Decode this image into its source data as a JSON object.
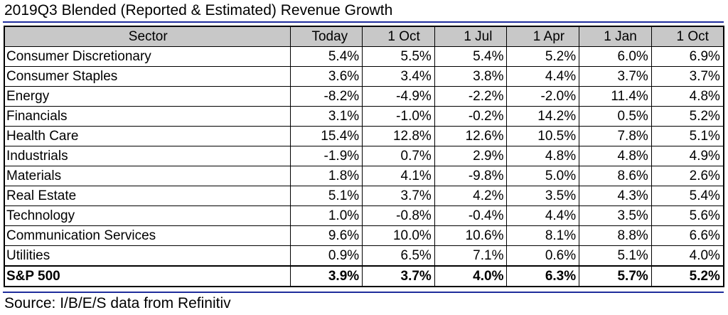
{
  "title": "2019Q3 Blended (Reported & Estimated) Revenue Growth",
  "source": "Source: I/B/E/S data from Refinitiv",
  "accent_color": "#1f2d9c",
  "header_bg": "#c8c8c8",
  "table": {
    "headers": [
      "Sector",
      "Today",
      "1 Oct",
      "1 Jul",
      "1 Apr",
      "1 Jan",
      "1 Oct"
    ],
    "rows": [
      {
        "name": "Consumer Discretionary",
        "values": [
          "5.4%",
          "5.5%",
          "5.4%",
          "5.2%",
          "6.0%",
          "6.9%"
        ]
      },
      {
        "name": "Consumer Staples",
        "values": [
          "3.6%",
          "3.4%",
          "3.8%",
          "4.4%",
          "3.7%",
          "3.7%"
        ]
      },
      {
        "name": "Energy",
        "values": [
          "-8.2%",
          "-4.9%",
          "-2.2%",
          "-2.0%",
          "11.4%",
          "4.8%"
        ]
      },
      {
        "name": "Financials",
        "values": [
          "3.1%",
          "-1.0%",
          "-0.2%",
          "14.2%",
          "0.5%",
          "5.2%"
        ]
      },
      {
        "name": "Health Care",
        "values": [
          "15.4%",
          "12.8%",
          "12.6%",
          "10.5%",
          "7.8%",
          "5.1%"
        ]
      },
      {
        "name": "Industrials",
        "values": [
          "-1.9%",
          "0.7%",
          "2.9%",
          "4.8%",
          "4.8%",
          "4.9%"
        ]
      },
      {
        "name": "Materials",
        "values": [
          "1.8%",
          "4.1%",
          "-9.8%",
          "5.0%",
          "8.6%",
          "2.6%"
        ]
      },
      {
        "name": "Real Estate",
        "values": [
          "5.1%",
          "3.7%",
          "4.2%",
          "3.5%",
          "4.3%",
          "5.4%"
        ]
      },
      {
        "name": "Technology",
        "values": [
          "1.0%",
          "-0.8%",
          "-0.4%",
          "4.4%",
          "3.5%",
          "5.6%"
        ]
      },
      {
        "name": "Communication Services",
        "values": [
          "9.6%",
          "10.0%",
          "10.6%",
          "8.1%",
          "8.8%",
          "6.6%"
        ]
      },
      {
        "name": "Utilities",
        "values": [
          "0.9%",
          "6.5%",
          "7.1%",
          "0.6%",
          "5.1%",
          "4.0%"
        ]
      }
    ],
    "total": {
      "name": "S&P 500",
      "values": [
        "3.9%",
        "3.7%",
        "4.0%",
        "6.3%",
        "5.7%",
        "5.2%"
      ]
    }
  }
}
